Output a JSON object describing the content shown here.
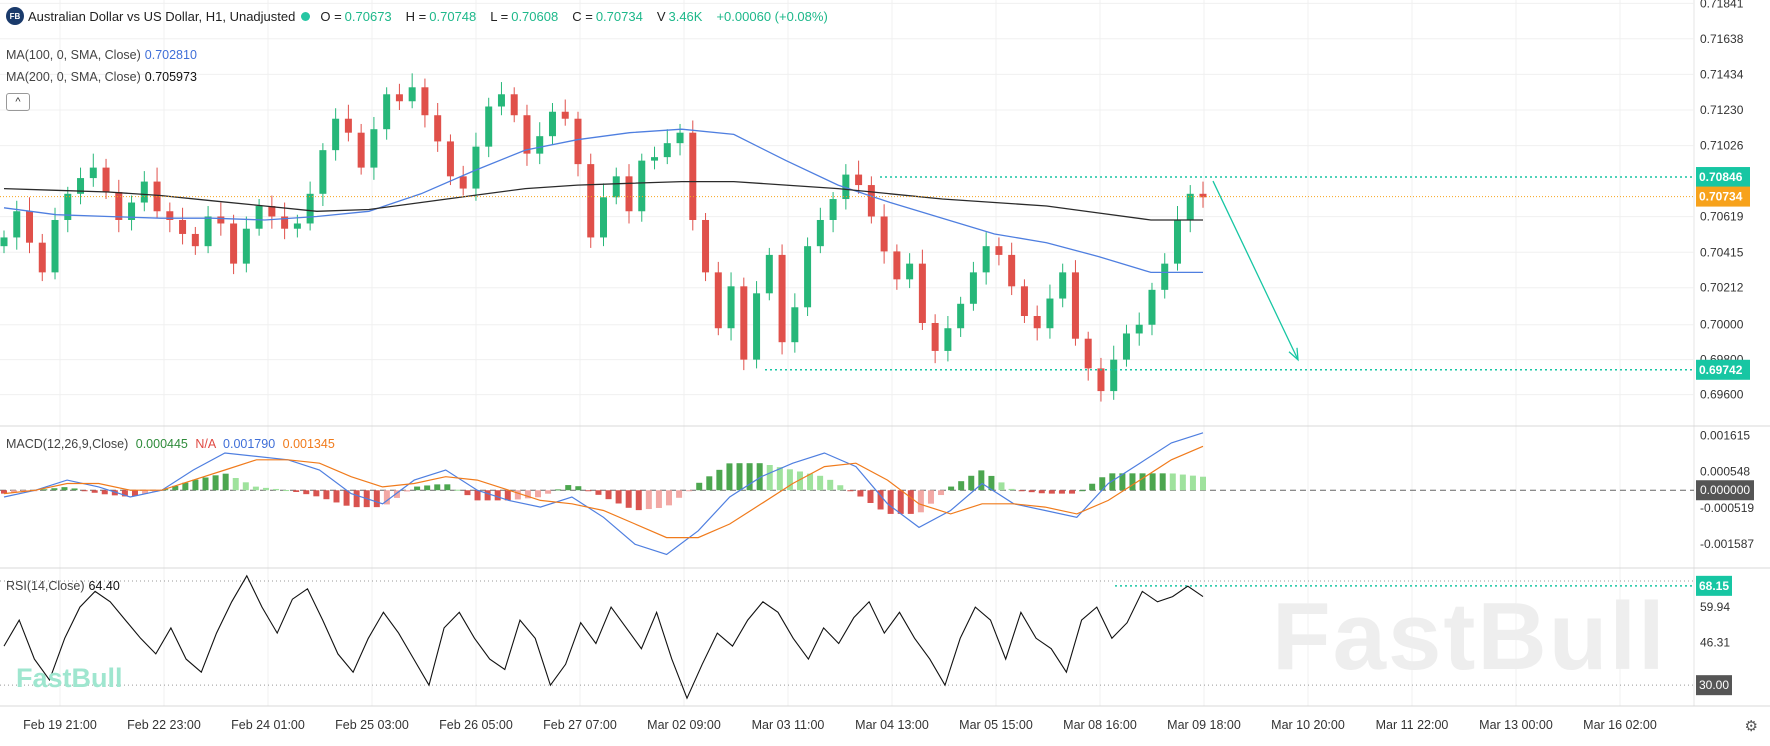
{
  "header": {
    "symbol_badge": "FB",
    "title": "Australian Dollar vs US Dollar, H1, Unadjusted",
    "open_label": "O =",
    "open": "0.70673",
    "high_label": "H =",
    "high": "0.70748",
    "low_label": "L =",
    "low": "0.70608",
    "close_label": "C =",
    "close": "0.70734",
    "volume_label": "V",
    "volume": "3.46K",
    "change": "+0.00060 (+0.08%)"
  },
  "indicators": {
    "ma100_label": "MA(100, 0, SMA, Close)",
    "ma100_value": "0.702810",
    "ma200_label": "MA(200, 0, SMA, Close)",
    "ma200_value": "0.705973",
    "macd_label": "MACD(12,26,9,Close)",
    "macd_hist": "0.000445",
    "macd_na": "N/A",
    "macd_line": "0.001790",
    "macd_signal": "0.001345",
    "rsi_label": "RSI(14,Close)",
    "rsi_value": "64.40"
  },
  "collapse_symbol": "^",
  "watermark": "FastBull",
  "colors": {
    "up": "#26b779",
    "down": "#e0504a",
    "ma100": "#4f7fe0",
    "ma200": "#2b2b2b",
    "level": "#17c6a3",
    "price_tag": "#f7a21b",
    "macd_signal": "#f07b1c",
    "macd_pos_strong": "#4ca64f",
    "macd_pos_weak": "#9fe29d",
    "macd_neg_strong": "#d9534f",
    "macd_neg_weak": "#f2a8a4"
  },
  "chart_data": [
    {
      "type": "candlestick",
      "title": "Australian Dollar vs US Dollar, H1",
      "ylim": [
        0.6942,
        0.7186
      ],
      "y_ticks": [
        "0.71841",
        "0.71638",
        "0.71434",
        "0.71230",
        "0.71026",
        "0.70619",
        "0.70415",
        "0.70212",
        "0.70000",
        "0.69800",
        "0.69600"
      ],
      "x_ticks": [
        "Feb 19 21:00",
        "Feb 22 23:00",
        "Feb 24 01:00",
        "Feb 25 03:00",
        "Feb 26 05:00",
        "Feb 27 07:00",
        "Mar 02 09:00",
        "Mar 03 11:00",
        "Mar 04 13:00",
        "Mar 05 15:00",
        "Mar 08 16:00",
        "Mar 09 18:00",
        "Mar 10 20:00",
        "Mar 11 22:00",
        "Mar 13 00:00",
        "Mar 16 02:00"
      ],
      "price_tags": [
        {
          "value": 0.70846,
          "label": "0.70846",
          "style": "resistance"
        },
        {
          "value": 0.70734,
          "label": "0.70734",
          "style": "current"
        },
        {
          "value": 0.69742,
          "label": "0.69742",
          "style": "support"
        }
      ],
      "series": [
        {
          "name": "Close (approx.)",
          "values": [
            0.705,
            0.7065,
            0.7047,
            0.703,
            0.706,
            0.7075,
            0.7084,
            0.709,
            0.7076,
            0.706,
            0.707,
            0.7082,
            0.7065,
            0.706,
            0.7052,
            0.7045,
            0.7062,
            0.7058,
            0.7035,
            0.7055,
            0.7068,
            0.7062,
            0.7055,
            0.7058,
            0.7075,
            0.71,
            0.7118,
            0.711,
            0.709,
            0.7112,
            0.7132,
            0.7128,
            0.7136,
            0.712,
            0.7105,
            0.7085,
            0.7078,
            0.7102,
            0.7125,
            0.7132,
            0.712,
            0.7098,
            0.7108,
            0.7122,
            0.7118,
            0.7092,
            0.705,
            0.7073,
            0.7085,
            0.7065,
            0.7094,
            0.7096,
            0.7104,
            0.711,
            0.706,
            0.703,
            0.6998,
            0.7022,
            0.698,
            0.7018,
            0.704,
            0.699,
            0.701,
            0.7045,
            0.706,
            0.7072,
            0.7086,
            0.708,
            0.7062,
            0.7042,
            0.7026,
            0.7035,
            0.7001,
            0.6985,
            0.6998,
            0.7012,
            0.703,
            0.7045,
            0.704,
            0.7022,
            0.7005,
            0.6998,
            0.7015,
            0.703,
            0.6992,
            0.6975,
            0.6962,
            0.698,
            0.6995,
            0.7,
            0.702,
            0.7035,
            0.706,
            0.7075,
            0.7073
          ]
        },
        {
          "name": "MA(100, 0, SMA, Close)",
          "values": [
            0.7067,
            0.7063,
            0.7062,
            0.7061,
            0.7061,
            0.706,
            0.7062,
            0.7065,
            0.7075,
            0.7088,
            0.71,
            0.7106,
            0.711,
            0.7112,
            0.7109,
            0.7094,
            0.708,
            0.707,
            0.7061,
            0.7052,
            0.7047,
            0.7039,
            0.703,
            0.703
          ]
        },
        {
          "name": "MA(200, 0, SMA, Close)",
          "values": [
            0.7078,
            0.7077,
            0.7076,
            0.7074,
            0.7071,
            0.7068,
            0.7065,
            0.7066,
            0.707,
            0.7074,
            0.7078,
            0.708,
            0.7081,
            0.7082,
            0.7082,
            0.708,
            0.7078,
            0.7075,
            0.7072,
            0.707,
            0.7068,
            0.7064,
            0.706,
            0.706
          ]
        }
      ],
      "annotations": [
        "Dotted resistance line at 0.70846",
        "Dotted support line at 0.69742",
        "Arrow projecting down from 0.70846 to 0.69742"
      ]
    },
    {
      "type": "macd",
      "title": "MACD(12,26,9,Close)",
      "ylim": [
        -0.0023,
        0.0019
      ],
      "y_ticks": [
        "0.001615",
        "0.000548",
        "0.000000",
        "-0.000519",
        "-0.001587"
      ],
      "zero_label": "0.000000",
      "series": [
        {
          "name": "MACD",
          "values": [
            -0.0002,
            0.0,
            0.0003,
            0.0001,
            -0.0002,
            0.0,
            0.0006,
            0.0011,
            0.001,
            0.0009,
            0.0006,
            -0.0001,
            -0.0004,
            0.0003,
            0.0006,
            0.0,
            -0.0003,
            -0.0005,
            -0.0002,
            -0.0008,
            -0.0016,
            -0.0019,
            -0.0012,
            -0.0002,
            0.0004,
            0.0008,
            0.0011,
            0.0007,
            -0.0004,
            -0.0011,
            -0.0006,
            0.0002,
            -0.0004,
            -0.0006,
            -0.0008,
            0.0002,
            0.0008,
            0.0014,
            0.0017
          ]
        },
        {
          "name": "Signal",
          "values": [
            -0.0001,
            0.0,
            0.0002,
            0.0002,
            0.0,
            0.0,
            0.0003,
            0.0006,
            0.0009,
            0.0009,
            0.0008,
            0.0004,
            0.0001,
            0.0002,
            0.0004,
            0.0003,
            0.0,
            -0.0003,
            -0.0004,
            -0.0006,
            -0.001,
            -0.0014,
            -0.0014,
            -0.001,
            -0.0004,
            0.0002,
            0.0007,
            0.0008,
            0.0003,
            -0.0004,
            -0.0007,
            -0.0004,
            -0.0004,
            -0.0005,
            -0.0007,
            -0.0003,
            0.0003,
            0.0009,
            0.0013
          ]
        }
      ]
    },
    {
      "type": "line",
      "title": "RSI(14,Close)",
      "ylim": [
        22,
        75
      ],
      "y_ticks": [
        "59.94",
        "46.31",
        "30.00"
      ],
      "level_label": "68.15",
      "bottom_label": "30.00",
      "series": [
        {
          "name": "RSI",
          "values": [
            45,
            55,
            40,
            32,
            48,
            60,
            66,
            62,
            55,
            48,
            42,
            52,
            40,
            35,
            50,
            62,
            72,
            60,
            50,
            63,
            67,
            55,
            42,
            35,
            48,
            58,
            50,
            40,
            30,
            52,
            58,
            48,
            40,
            36,
            55,
            48,
            30,
            38,
            54,
            46,
            60,
            52,
            44,
            58,
            40,
            25,
            38,
            50,
            45,
            55,
            62,
            58,
            48,
            40,
            52,
            46,
            56,
            62,
            50,
            58,
            48,
            40,
            30,
            48,
            60,
            55,
            40,
            58,
            48,
            44,
            35,
            55,
            60,
            48,
            54,
            66,
            62,
            64,
            68,
            64
          ]
        }
      ]
    }
  ]
}
